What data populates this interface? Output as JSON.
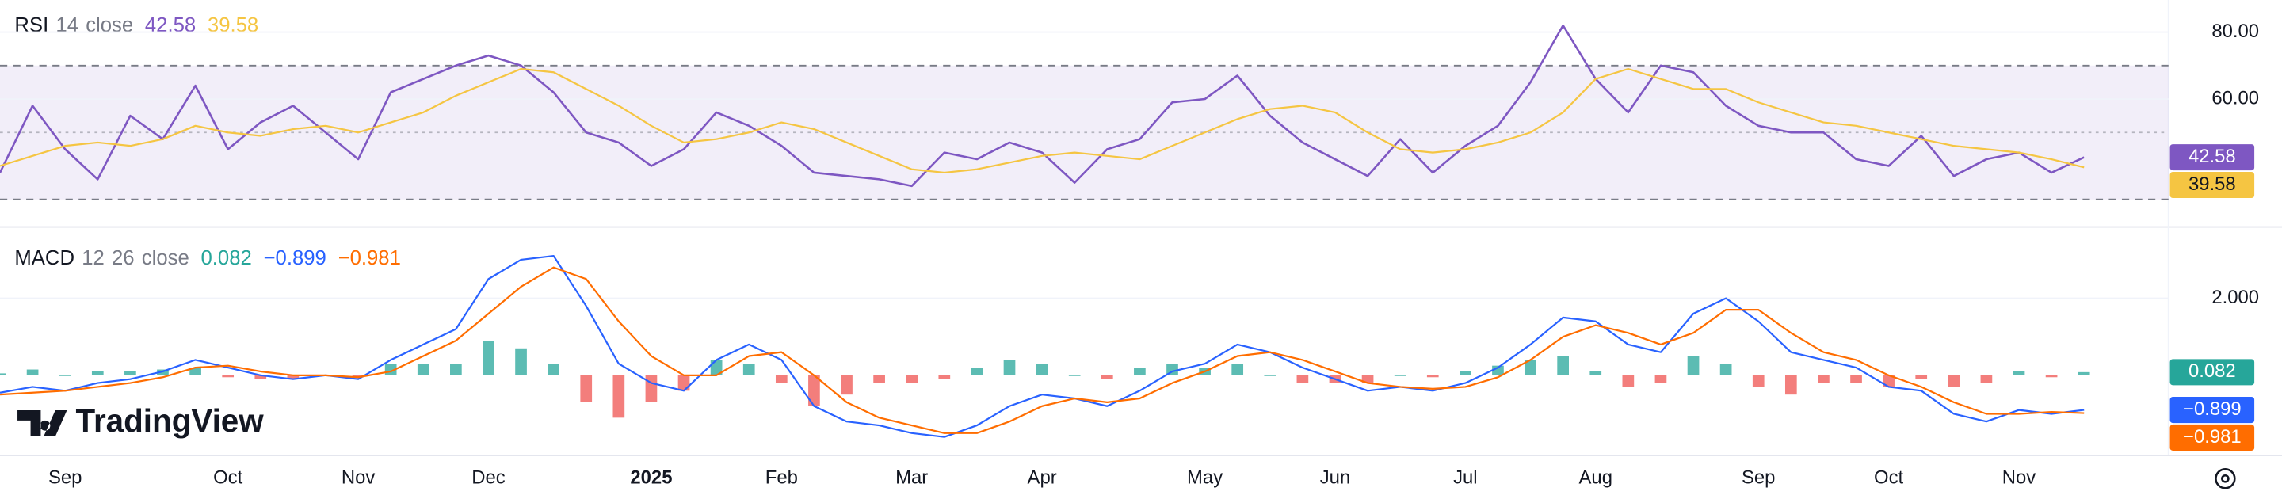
{
  "chart_data": [
    {
      "type": "rsi",
      "title": "RSI",
      "params": [
        "14",
        "close"
      ],
      "ylim": [
        23.5,
        89.6
      ],
      "yticks": [
        {
          "value": 80,
          "label": "80.00"
        },
        {
          "value": 60,
          "label": "60.00"
        }
      ],
      "bands": [
        30,
        70
      ],
      "midline": 50,
      "band_color": "#7e57c2",
      "grid": true,
      "series": [
        {
          "color": "#7e57c2",
          "values": [
            38,
            58,
            45,
            36,
            55,
            48,
            64,
            45,
            53,
            58,
            50,
            42,
            62,
            66,
            70,
            73,
            70,
            62,
            50,
            47,
            40,
            45,
            56,
            52,
            46,
            38,
            37,
            36,
            34,
            44,
            42,
            47,
            44,
            35,
            45,
            48,
            59,
            60,
            67,
            55,
            47,
            42,
            37,
            48,
            38,
            46,
            52,
            65,
            82,
            66,
            56,
            70,
            68,
            58,
            52,
            50,
            50,
            42,
            40,
            49,
            37,
            42,
            44,
            38,
            42.58
          ]
        },
        {
          "color": "#f5c542",
          "values": [
            40,
            43,
            46,
            47,
            46,
            48,
            52,
            50,
            49,
            51,
            52,
            50,
            53,
            56,
            61,
            65,
            69,
            68,
            63,
            58,
            52,
            47,
            48,
            50,
            53,
            51,
            47,
            43,
            39,
            38,
            39,
            41,
            43,
            44,
            43,
            42,
            46,
            50,
            54,
            57,
            58,
            56,
            50,
            45,
            44,
            45,
            47,
            50,
            56,
            66,
            69,
            66,
            63,
            63,
            59,
            56,
            53,
            52,
            50,
            48,
            46,
            45,
            44,
            42,
            39.58
          ]
        }
      ]
    },
    {
      "type": "macd",
      "title": "MACD",
      "params": [
        "12",
        "26",
        "close"
      ],
      "categories": [
        null,
        null,
        "Sep",
        null,
        null,
        null,
        null,
        "Oct",
        null,
        null,
        null,
        "Nov",
        null,
        null,
        null,
        "Dec",
        null,
        null,
        null,
        null,
        "2025",
        null,
        null,
        null,
        "Feb",
        null,
        null,
        null,
        "Mar",
        null,
        null,
        null,
        "Apr",
        null,
        null,
        null,
        null,
        "May",
        null,
        null,
        null,
        "Jun",
        null,
        null,
        null,
        "Jul",
        null,
        null,
        null,
        "Aug",
        null,
        null,
        null,
        null,
        "Sep",
        null,
        null,
        null,
        "Oct",
        null,
        null,
        null,
        "Nov",
        null,
        null
      ],
      "ylim": [
        -2.04,
        3.7
      ],
      "yticks": [
        {
          "value": 2,
          "label": "2.000"
        }
      ],
      "grid": true,
      "series": [
        {
          "kind": "histogram",
          "color": "#26a69a",
          "color_down": "#ef5350",
          "values": [
            0.05,
            0.15,
            0,
            0.1,
            0.1,
            0.15,
            0.2,
            -0.05,
            -0.1,
            -0.1,
            0,
            -0.05,
            0.3,
            0.3,
            0.3,
            0.9,
            0.7,
            0.3,
            -0.7,
            -1.1,
            -0.7,
            -0.4,
            0.4,
            0.3,
            -0.2,
            -0.8,
            -0.5,
            -0.2,
            -0.2,
            -0.1,
            0.2,
            0.4,
            0.3,
            0,
            -0.1,
            0.2,
            0.3,
            0.2,
            0.3,
            0,
            -0.2,
            -0.2,
            -0.2,
            0,
            -0.05,
            0.1,
            0.25,
            0.4,
            0.5,
            0.1,
            -0.3,
            -0.2,
            0.5,
            0.3,
            -0.3,
            -0.5,
            -0.2,
            -0.2,
            -0.3,
            -0.1,
            -0.3,
            -0.2,
            0.1,
            -0.05,
            0.082
          ]
        },
        {
          "kind": "line",
          "color": "#2962ff",
          "values": [
            -0.45,
            -0.3,
            -0.4,
            -0.2,
            -0.1,
            0.1,
            0.4,
            0.2,
            0,
            -0.1,
            0,
            -0.1,
            0.4,
            0.8,
            1.2,
            2.5,
            3,
            3.1,
            1.8,
            0.3,
            -0.2,
            -0.4,
            0.4,
            0.8,
            0.4,
            -0.8,
            -1.2,
            -1.3,
            -1.5,
            -1.6,
            -1.3,
            -0.8,
            -0.5,
            -0.6,
            -0.8,
            -0.4,
            0.1,
            0.3,
            0.8,
            0.6,
            0.2,
            -0.1,
            -0.4,
            -0.3,
            -0.4,
            -0.2,
            0.2,
            0.8,
            1.5,
            1.4,
            0.8,
            0.6,
            1.6,
            2,
            1.4,
            0.6,
            0.4,
            0.2,
            -0.3,
            -0.4,
            -1,
            -1.2,
            -0.9,
            -1,
            -0.899
          ],
          "value_labels": [
            null,
            null,
            null,
            null,
            null,
            null,
            null,
            null,
            null,
            null,
            null,
            null,
            null,
            null,
            null,
            null,
            null,
            null,
            null,
            null,
            null,
            null,
            null,
            null,
            null,
            null,
            null,
            null,
            null,
            null,
            null,
            null,
            null,
            null,
            null,
            null,
            null,
            null,
            null,
            null,
            null,
            null,
            null,
            null,
            null,
            null,
            null,
            null,
            null,
            null,
            null,
            null,
            null,
            null,
            null,
            null,
            null,
            null,
            null,
            null,
            null,
            null,
            null,
            null,
            "−0.899"
          ]
        },
        {
          "kind": "line",
          "color": "#ff6d00",
          "values": [
            -0.5,
            -0.45,
            -0.4,
            -0.3,
            -0.2,
            -0.05,
            0.2,
            0.25,
            0.1,
            0,
            0,
            -0.05,
            0.1,
            0.5,
            0.9,
            1.6,
            2.3,
            2.8,
            2.5,
            1.4,
            0.5,
            0,
            0,
            0.5,
            0.6,
            0,
            -0.7,
            -1.1,
            -1.3,
            -1.5,
            -1.5,
            -1.2,
            -0.8,
            -0.6,
            -0.7,
            -0.6,
            -0.2,
            0.1,
            0.5,
            0.6,
            0.4,
            0.1,
            -0.2,
            -0.3,
            -0.35,
            -0.3,
            -0.05,
            0.4,
            1,
            1.3,
            1.1,
            0.8,
            1.1,
            1.7,
            1.7,
            1.1,
            0.6,
            0.4,
            0,
            -0.3,
            -0.7,
            -1,
            -1,
            -0.95,
            -0.981
          ],
          "value_labels": [
            null,
            null,
            null,
            null,
            null,
            null,
            null,
            null,
            null,
            null,
            null,
            null,
            null,
            null,
            null,
            null,
            null,
            null,
            null,
            null,
            null,
            null,
            null,
            null,
            null,
            null,
            null,
            null,
            null,
            null,
            null,
            null,
            null,
            null,
            null,
            null,
            null,
            null,
            null,
            null,
            null,
            null,
            null,
            null,
            null,
            null,
            null,
            null,
            null,
            null,
            null,
            null,
            null,
            null,
            null,
            null,
            null,
            null,
            null,
            null,
            null,
            null,
            null,
            null,
            "−0.981"
          ]
        }
      ]
    }
  ],
  "watermark": "TradingView"
}
